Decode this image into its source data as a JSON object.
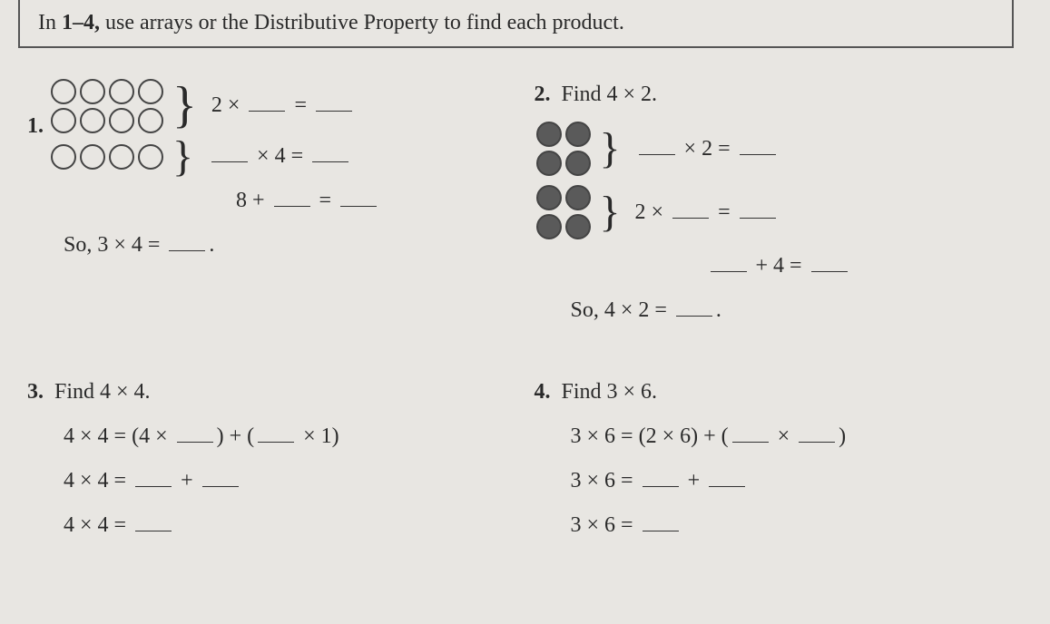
{
  "instruction": {
    "prefix": "In ",
    "range": "1–4,",
    "rest": " use arrays or the Distributive Property to find each product."
  },
  "p1": {
    "num": "1.",
    "array_top_rows": 2,
    "array_top_cols": 4,
    "array_bot_rows": 1,
    "array_bot_cols": 4,
    "line1": "2 ×",
    "line1_eq": "=",
    "line2_mid": "× 4 =",
    "line3_pre": "8 +",
    "line3_eq": "=",
    "so": "So, 3 × 4 =",
    "so_end": "."
  },
  "p2": {
    "num": "2.",
    "title": "Find 4 × 2.",
    "arr1_rows": 2,
    "arr1_cols": 2,
    "arr2_rows": 2,
    "arr2_cols": 2,
    "line1_mid": "× 2 =",
    "line2_pre": "2 ×",
    "line2_eq": "=",
    "line3_mid": "+ 4 =",
    "so": "So, 4 × 2 =",
    "so_end": "."
  },
  "p3": {
    "num": "3.",
    "title": "Find 4 × 4.",
    "l1_a": "4 × 4 = (4 ×",
    "l1_b": ") + (",
    "l1_c": "× 1)",
    "l2_a": "4 × 4 =",
    "l2_b": "+",
    "l3": "4 × 4 ="
  },
  "p4": {
    "num": "4.",
    "title": "Find 3 × 6.",
    "l1_a": "3 × 6 = (2 × 6) + (",
    "l1_b": "×",
    "l1_c": ")",
    "l2_a": "3 × 6 =",
    "l2_b": "+",
    "l3": "3 × 6 ="
  },
  "style": {
    "dot_border": "#444",
    "dot_fill": "#5a5a5a",
    "bg": "#e8e6e2",
    "text": "#2a2a2a"
  }
}
